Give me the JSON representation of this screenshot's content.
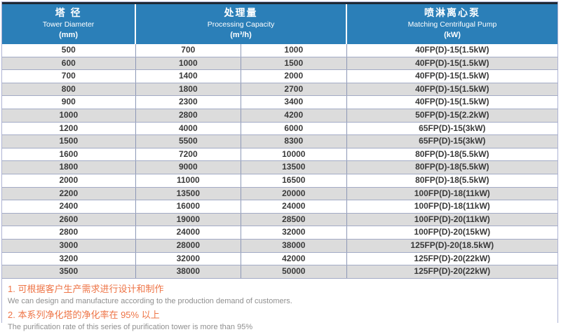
{
  "table": {
    "header": {
      "tower_diameter": {
        "zh": "塔 径",
        "en": "Tower Diameter",
        "unit": "(mm)"
      },
      "processing_capacity": {
        "zh": "处理量",
        "en": "Processing Capacity",
        "unit": "(m³/h)"
      },
      "pump": {
        "zh": "喷淋离心泵",
        "en": "Matching Centrifugal Pump",
        "unit": "(kW)"
      }
    },
    "rows": [
      [
        "500",
        "700",
        "1000",
        "40FP(D)-15(1.5kW)"
      ],
      [
        "600",
        "1000",
        "1500",
        "40FP(D)-15(1.5kW)"
      ],
      [
        "700",
        "1400",
        "2000",
        "40FP(D)-15(1.5kW)"
      ],
      [
        "800",
        "1800",
        "2700",
        "40FP(D)-15(1.5kW)"
      ],
      [
        "900",
        "2300",
        "3400",
        "40FP(D)-15(1.5kW)"
      ],
      [
        "1000",
        "2800",
        "4200",
        "50FP(D)-15(2.2kW)"
      ],
      [
        "1200",
        "4000",
        "6000",
        "65FP(D)-15(3kW)"
      ],
      [
        "1500",
        "5500",
        "8300",
        "65FP(D)-15(3kW)"
      ],
      [
        "1600",
        "7200",
        "10000",
        "80FP(D)-18(5.5kW)"
      ],
      [
        "1800",
        "9000",
        "13500",
        "80FP(D)-18(5.5kW)"
      ],
      [
        "2000",
        "11000",
        "16500",
        "80FP(D)-18(5.5kW)"
      ],
      [
        "2200",
        "13500",
        "20000",
        "100FP(D)-18(11kW)"
      ],
      [
        "2400",
        "16000",
        "24000",
        "100FP(D)-18(11kW)"
      ],
      [
        "2600",
        "19000",
        "28500",
        "100FP(D)-20(11kW)"
      ],
      [
        "2800",
        "24000",
        "32000",
        "100FP(D)-20(15kW)"
      ],
      [
        "3000",
        "28000",
        "38000",
        "125FP(D)-20(18.5kW)"
      ],
      [
        "3200",
        "32000",
        "42000",
        "125FP(D)-20(22kW)"
      ],
      [
        "3500",
        "38000",
        "50000",
        "125FP(D)-20(22kW)"
      ]
    ]
  },
  "notes": [
    {
      "zh": "1. 可根据客户生产需求进行设计和制作",
      "en": "We can design and manufacture according to the production demand of customers."
    },
    {
      "zh": "2. 本系列净化塔的净化率在 95% 以上",
      "en": "The purification rate of this series of purification tower is more than 95%"
    }
  ],
  "colors": {
    "header-blue": "#2b7fb8",
    "header-top-line": "#1e2834",
    "row-alt": "#dcdcdc",
    "grid-line": "#8d98b6",
    "row-line": "#a3abc6",
    "outer-border": "#aeb3d4",
    "body-text": "#3a3a3a",
    "note-orange": "#ee7446",
    "note-gray": "#8f8f8f"
  }
}
